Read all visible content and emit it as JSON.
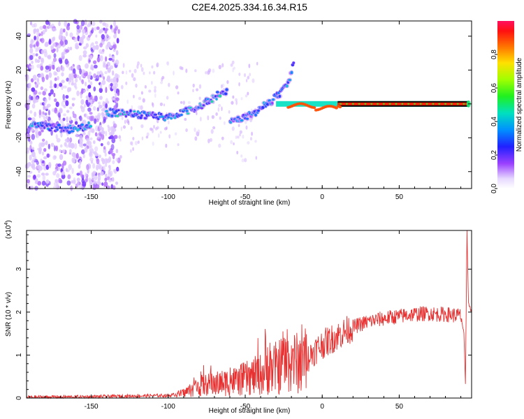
{
  "title": "C2E4.2025.334.16.34.R15",
  "chart_data": [
    {
      "type": "heatmap",
      "xlabel": "Height of straight line (km)",
      "ylabel": "Frequency (Hz)",
      "xlim": [
        -192,
        97
      ],
      "ylim": [
        -50,
        49
      ],
      "xticks": [
        -150,
        -100,
        -50,
        0,
        50
      ],
      "yticks": [
        -40,
        -20,
        0,
        20,
        40
      ],
      "colorbar": {
        "label": "Normalized spectral amplitude",
        "range": [
          0,
          1
        ],
        "ticks": [
          0.0,
          0.2,
          0.4,
          0.6,
          0.8
        ]
      },
      "features": [
        {
          "name": "carrier-line",
          "x_range": [
            10,
            95
          ],
          "frequency": 0,
          "amplitude": 1.0
        },
        {
          "name": "main-trace",
          "points": [
            [
              -140,
              -5
            ],
            [
              -120,
              -6
            ],
            [
              -100,
              -8
            ],
            [
              -90,
              -5
            ],
            [
              -80,
              -2
            ],
            [
              -70,
              4
            ],
            [
              -62,
              8
            ]
          ],
          "amplitude": 0.35
        },
        {
          "name": "second-trace",
          "points": [
            [
              -60,
              -11
            ],
            [
              -50,
              -8
            ],
            [
              -40,
              -3
            ],
            [
              -30,
              4
            ],
            [
              -22,
              12
            ],
            [
              -18,
              25
            ]
          ],
          "amplitude": 0.3
        },
        {
          "name": "low-branch",
          "points": [
            [
              -190,
              -12
            ],
            [
              -175,
              -14
            ],
            [
              -165,
              -15
            ],
            [
              -150,
              -13
            ]
          ],
          "amplitude": 0.3
        }
      ]
    },
    {
      "type": "line",
      "xlabel": "Height of straight line (km)",
      "ylabel": "SNR (10 * v/v)",
      "multiplier": "(x10",
      "multiplier_exp": "4",
      "multiplier_close": ")",
      "xlim": [
        -192,
        97
      ],
      "ylim": [
        0,
        3.9
      ],
      "xticks": [
        -150,
        -100,
        -50,
        0,
        50
      ],
      "yticks": [
        0,
        1,
        2,
        3
      ],
      "series": [
        {
          "name": "SNR",
          "color": "#e83030",
          "x": [
            -192,
            -150,
            -120,
            -100,
            -95,
            -90,
            -85,
            -80,
            -75,
            -70,
            -65,
            -60,
            -55,
            -50,
            -45,
            -40,
            -35,
            -30,
            -25,
            -20,
            -15,
            -10,
            -5,
            0,
            5,
            10,
            15,
            20,
            25,
            30,
            35,
            40,
            45,
            50,
            55,
            60,
            65,
            70,
            75,
            80,
            85,
            90,
            92,
            93,
            94,
            95,
            97
          ],
          "values": [
            0.02,
            0.03,
            0.05,
            0.06,
            0.08,
            0.12,
            0.2,
            0.28,
            0.3,
            0.32,
            0.35,
            0.38,
            0.4,
            0.45,
            0.5,
            0.55,
            0.62,
            0.7,
            0.8,
            0.85,
            0.8,
            0.9,
            1.1,
            1.25,
            1.35,
            1.45,
            1.55,
            1.65,
            1.72,
            1.78,
            1.82,
            1.85,
            1.88,
            1.9,
            1.93,
            1.95,
            1.96,
            1.97,
            1.95,
            1.95,
            1.93,
            1.92,
            1.5,
            0.3,
            3.9,
            2.2,
            2.0
          ]
        }
      ]
    }
  ]
}
